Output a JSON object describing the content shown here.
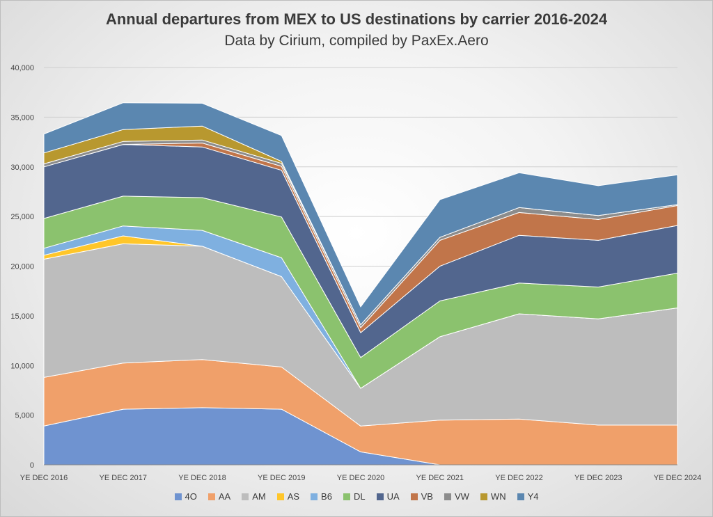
{
  "chart_data": {
    "type": "area",
    "stacked": true,
    "title": "Annual departures from MEX to US destinations by carrier 2016-2024",
    "subtitle": "Data by Cirium, compiled by PaxEx.Aero",
    "categories": [
      "YE DEC 2016",
      "YE DEC 2017",
      "YE DEC 2018",
      "YE DEC 2019",
      "YE DEC 2020",
      "YE DEC 2021",
      "YE DEC 2022",
      "YE DEC 2023",
      "YE DEC 2024"
    ],
    "ylim": [
      0,
      40000
    ],
    "yticks": [
      0,
      5000,
      10000,
      15000,
      20000,
      25000,
      30000,
      35000,
      40000
    ],
    "ytick_labels": [
      "0",
      "5,000",
      "10,000",
      "15,000",
      "20,000",
      "25,000",
      "30,000",
      "35,000",
      "40,000"
    ],
    "grid": true,
    "legend_position": "bottom",
    "series": [
      {
        "name": "4O",
        "color": "#6f93d0",
        "values": [
          3900,
          5600,
          5750,
          5600,
          1300,
          0,
          0,
          0,
          0
        ]
      },
      {
        "name": "AA",
        "color": "#f0a06a",
        "values": [
          4900,
          4650,
          4850,
          4250,
          2600,
          4500,
          4600,
          4000,
          4000
        ]
      },
      {
        "name": "AM",
        "color": "#bdbdbd",
        "values": [
          11900,
          12000,
          11400,
          9100,
          3800,
          8400,
          10600,
          10700,
          11800
        ]
      },
      {
        "name": "AS",
        "color": "#ffc62a",
        "values": [
          400,
          800,
          0,
          0,
          0,
          0,
          0,
          0,
          0
        ]
      },
      {
        "name": "B6",
        "color": "#7fb0e0",
        "values": [
          700,
          1000,
          1600,
          1900,
          0,
          0,
          0,
          0,
          0
        ]
      },
      {
        "name": "DL",
        "color": "#8bc26e",
        "values": [
          3000,
          3000,
          3300,
          4100,
          3100,
          3600,
          3100,
          3200,
          3500
        ]
      },
      {
        "name": "UA",
        "color": "#52668e",
        "values": [
          5200,
          5200,
          5100,
          4700,
          2500,
          3500,
          4800,
          4700,
          4800
        ]
      },
      {
        "name": "VB",
        "color": "#c1754a",
        "values": [
          0,
          0,
          400,
          400,
          500,
          2600,
          2300,
          2100,
          2000
        ]
      },
      {
        "name": "VW",
        "color": "#8c8c8c",
        "values": [
          300,
          300,
          300,
          300,
          300,
          300,
          500,
          400,
          100
        ]
      },
      {
        "name": "WN",
        "color": "#b8982f",
        "values": [
          1100,
          1200,
          1400,
          200,
          0,
          0,
          0,
          0,
          0
        ]
      },
      {
        "name": "Y4",
        "color": "#5b87b0",
        "values": [
          1900,
          2700,
          2300,
          2600,
          1800,
          3800,
          3500,
          3000,
          3000
        ]
      }
    ]
  }
}
